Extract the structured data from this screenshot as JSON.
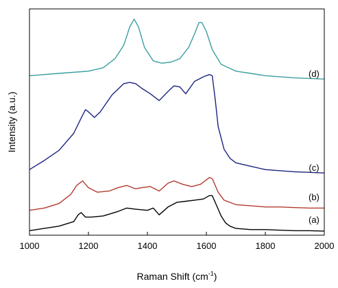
{
  "chart_data": {
    "type": "line",
    "xlabel": "Raman Shift (cm",
    "xlabel_sup": "-1",
    "xlabel_close": ")",
    "ylabel": "Intensity (a.u.)",
    "xlim": [
      1000,
      2000
    ],
    "ylim": [
      0,
      10
    ],
    "x_ticks": [
      1000,
      1200,
      1400,
      1600,
      1800,
      2000
    ],
    "x_tick_labels": [
      "1000",
      "1200",
      "1400",
      "1600",
      "1800",
      "2000"
    ],
    "y_ticks_labeled": false,
    "grid": false,
    "series": [
      {
        "name": "(a)",
        "color": "#000000",
        "label_at": [
          1965,
          0.55
        ],
        "x": [
          1000,
          1050,
          1100,
          1150,
          1165,
          1175,
          1190,
          1210,
          1250,
          1300,
          1330,
          1360,
          1400,
          1420,
          1440,
          1470,
          1500,
          1530,
          1560,
          1590,
          1610,
          1620,
          1635,
          1650,
          1665,
          1680,
          1700,
          1750,
          1800,
          1850,
          1900,
          1950,
          2000
        ],
        "y": [
          0.2,
          0.3,
          0.4,
          0.6,
          0.9,
          1.0,
          0.8,
          0.8,
          0.85,
          1.05,
          1.2,
          1.15,
          1.1,
          1.2,
          0.9,
          1.25,
          1.45,
          1.5,
          1.55,
          1.6,
          1.75,
          1.75,
          1.3,
          0.85,
          0.55,
          0.4,
          0.3,
          0.25,
          0.25,
          0.22,
          0.2,
          0.2,
          0.18
        ]
      },
      {
        "name": "(b)",
        "color": "#b23a2e",
        "label_at": [
          1965,
          1.55
        ],
        "x": [
          1000,
          1050,
          1100,
          1140,
          1160,
          1180,
          1200,
          1230,
          1270,
          1300,
          1330,
          1360,
          1380,
          1410,
          1440,
          1470,
          1490,
          1520,
          1550,
          1580,
          1610,
          1620,
          1640,
          1660,
          1680,
          1700,
          1750,
          1800,
          1850,
          1900,
          1950,
          2000
        ],
        "y": [
          1.1,
          1.2,
          1.4,
          1.8,
          2.2,
          2.4,
          2.1,
          1.9,
          1.95,
          2.1,
          2.2,
          2.05,
          2.1,
          2.15,
          1.95,
          2.3,
          2.4,
          2.25,
          2.15,
          2.25,
          2.55,
          2.5,
          1.9,
          1.55,
          1.45,
          1.35,
          1.3,
          1.25,
          1.25,
          1.22,
          1.2,
          1.2
        ]
      },
      {
        "name": "(c)",
        "color": "#1a237e",
        "label_at": [
          1965,
          2.85
        ],
        "x": [
          1000,
          1050,
          1100,
          1150,
          1180,
          1190,
          1200,
          1220,
          1240,
          1280,
          1320,
          1340,
          1360,
          1380,
          1410,
          1440,
          1470,
          1490,
          1510,
          1530,
          1560,
          1590,
          1610,
          1620,
          1630,
          1640,
          1660,
          1680,
          1700,
          1750,
          1800,
          1850,
          1900,
          1950,
          2000
        ],
        "y": [
          2.9,
          3.3,
          3.75,
          4.5,
          5.3,
          5.55,
          5.45,
          5.2,
          5.45,
          6.2,
          6.7,
          6.75,
          6.7,
          6.5,
          6.25,
          5.95,
          6.35,
          6.6,
          6.55,
          6.25,
          6.8,
          7.0,
          7.1,
          7.05,
          6.0,
          4.8,
          3.8,
          3.4,
          3.2,
          3.05,
          2.9,
          2.85,
          2.8,
          2.78,
          2.75
        ]
      },
      {
        "name": "(d)",
        "color": "#3a9ea2",
        "label_at": [
          1965,
          7.0
        ],
        "x": [
          1000,
          1100,
          1200,
          1250,
          1290,
          1320,
          1340,
          1355,
          1370,
          1390,
          1420,
          1450,
          1480,
          1510,
          1540,
          1560,
          1575,
          1585,
          1600,
          1620,
          1650,
          1700,
          1750,
          1800,
          1900,
          2000
        ],
        "y": [
          7.05,
          7.15,
          7.25,
          7.4,
          7.8,
          8.4,
          9.2,
          9.55,
          9.2,
          8.3,
          7.7,
          7.6,
          7.65,
          7.8,
          8.3,
          8.9,
          9.4,
          9.4,
          9.0,
          8.2,
          7.55,
          7.25,
          7.15,
          7.05,
          6.95,
          6.9
        ]
      }
    ]
  }
}
